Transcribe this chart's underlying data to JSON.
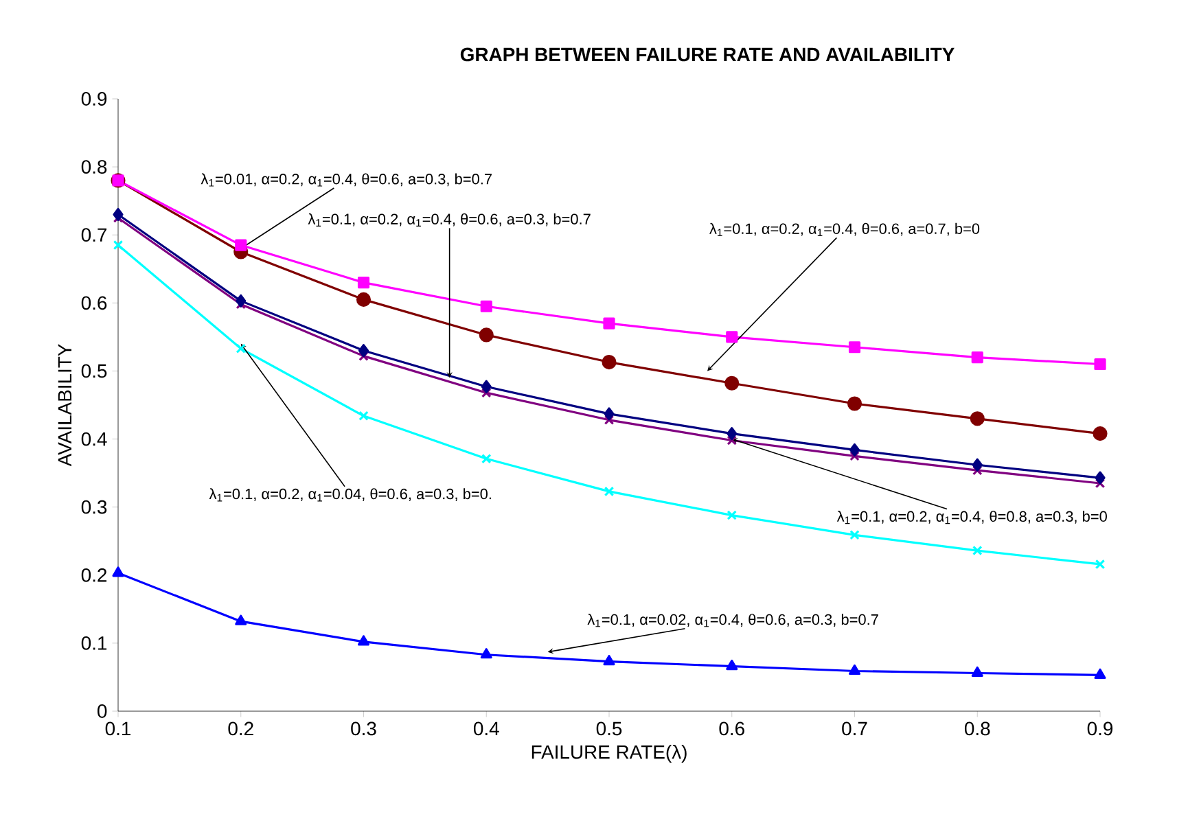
{
  "chart_data": {
    "type": "line",
    "title": "GRAPH BETWEEN FAILURE RATE AND AVAILABILITY",
    "xlabel": "FAILURE RATE(λ)",
    "ylabel": "AVAILABILITY",
    "x": [
      0.1,
      0.2,
      0.3,
      0.4,
      0.5,
      0.6,
      0.7,
      0.8,
      0.9
    ],
    "xlim": [
      0.1,
      0.9
    ],
    "xticks": [
      0.1,
      0.2,
      0.3,
      0.4,
      0.5,
      0.6,
      0.7,
      0.8,
      0.9
    ],
    "ylim": [
      0,
      0.9
    ],
    "yticks": [
      0,
      0.1,
      0.2,
      0.3,
      0.4,
      0.5,
      0.6,
      0.7,
      0.8,
      0.9
    ],
    "series": [
      {
        "color": "#ff00ff",
        "marker": "square",
        "values": [
          0.78,
          0.685,
          0.63,
          0.595,
          0.57,
          0.55,
          0.535,
          0.52,
          0.51
        ]
      },
      {
        "color": "#800000",
        "marker": "circle",
        "values": [
          0.78,
          0.675,
          0.605,
          0.553,
          0.513,
          0.482,
          0.452,
          0.43,
          0.408
        ]
      },
      {
        "color": "#000080",
        "marker": "diamond",
        "values": [
          0.73,
          0.603,
          0.53,
          0.477,
          0.437,
          0.408,
          0.384,
          0.362,
          0.343
        ]
      },
      {
        "color": "#800080",
        "marker": "cross",
        "values": [
          0.725,
          0.598,
          0.522,
          0.468,
          0.428,
          0.398,
          0.375,
          0.354,
          0.335
        ]
      },
      {
        "color": "#00ffff",
        "marker": "cross",
        "values": [
          0.685,
          0.533,
          0.434,
          0.371,
          0.323,
          0.288,
          0.259,
          0.236,
          0.216
        ]
      },
      {
        "color": "#0000ff",
        "marker": "triangle",
        "values": [
          0.203,
          0.132,
          0.102,
          0.083,
          0.073,
          0.066,
          0.059,
          0.056,
          0.053
        ]
      }
    ],
    "annotations": [
      {
        "text": "λ$_{1}$=0.01, α=0.2, α$_{1}$=0.4, θ=0.6, a=0.3, b=0.7",
        "x": 0.2,
        "y": 0.68
      },
      {
        "text": "λ$_{1}$=0.1, α=0.2, α$_{1}$=0.4, θ=0.6, a=0.3, b=0.7",
        "x": 0.37,
        "y": 0.49
      },
      {
        "text": "λ$_{1}$=0.1, α=0.2, α$_{1}$=0.4, θ=0.6, a=0.7, b=0",
        "x": 0.58,
        "y": 0.5
      },
      {
        "text": "λ$_{1}$=0.1, α=0.2, α$_{1}$=0.04, θ=0.6, a=0.3, b=0.",
        "x": 0.2,
        "y": 0.54
      },
      {
        "text": "λ$_{1}$=0.1, α=0.2, α$_{1}$=0.4, θ=0.8, a=0.3, b=0",
        "x": 0.6,
        "y": 0.4
      },
      {
        "text": "λ$_{1}$=0.1, α=0.02, α$_{1}$=0.4, θ=0.6, a=0.3, b=0.7",
        "x": 0.45,
        "y": 0.087
      }
    ]
  }
}
